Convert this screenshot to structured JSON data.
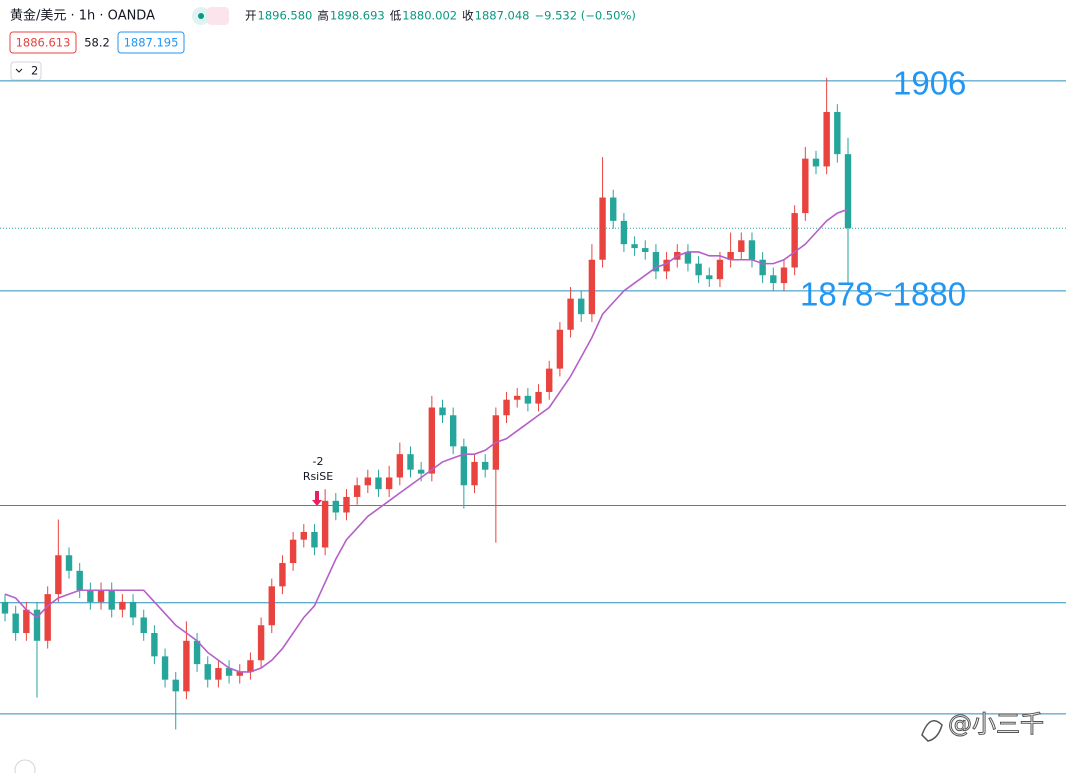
{
  "header": {
    "symbol": "黄金/美元 · 1h · OANDA",
    "ohlc": [
      {
        "label": "开",
        "value": "1896.580"
      },
      {
        "label": "高",
        "value": "1898.693"
      },
      {
        "label": "低",
        "value": "1880.002"
      },
      {
        "label": "收",
        "value": "1887.048"
      }
    ],
    "change": "−9.532 (−0.50%)",
    "bid": "1886.613",
    "spread": "58.2",
    "ask": "1887.195",
    "collapse": "2"
  },
  "watermark": "@小三千",
  "chart_data": {
    "type": "candlestick",
    "up_color": "#e8433f",
    "down_color": "#26a69a",
    "ylim": [
      1817,
      1916.4
    ],
    "open": [
      1839,
      1837.5,
      1835,
      1838,
      1834,
      1840,
      1845,
      1843,
      1840.5,
      1839,
      1840.5,
      1838,
      1839,
      1837,
      1835,
      1832,
      1829,
      1827.5,
      1834,
      1831,
      1829,
      1830.5,
      1829.5,
      1830,
      1831.5,
      1836,
      1841,
      1844,
      1847,
      1848,
      1846,
      1852,
      1850.5,
      1852.5,
      1854,
      1855,
      1853.5,
      1855,
      1858,
      1856,
      1855.5,
      1864,
      1863,
      1859,
      1854,
      1857,
      1856,
      1863,
      1865,
      1865.5,
      1864.5,
      1866,
      1869,
      1874,
      1878,
      1876,
      1883,
      1891,
      1888,
      1885,
      1884.5,
      1884,
      1881.5,
      1883,
      1884,
      1882.5,
      1881,
      1880.5,
      1883,
      1884,
      1885.5,
      1883,
      1881,
      1880,
      1882,
      1889,
      1896,
      1895,
      1902,
      1896.58
    ],
    "high": [
      1840,
      1838.5,
      1839,
      1839,
      1841,
      1849.6,
      1846,
      1844,
      1841.5,
      1841.5,
      1841.5,
      1840,
      1840,
      1838,
      1836,
      1833,
      1830,
      1836.5,
      1835,
      1832,
      1831.5,
      1831.5,
      1831,
      1832.5,
      1837,
      1842,
      1845,
      1848,
      1849,
      1849,
      1853.5,
      1853,
      1853.5,
      1855,
      1856,
      1856,
      1856.5,
      1859.5,
      1859,
      1857,
      1865.5,
      1865,
      1864,
      1860,
      1858,
      1858,
      1864,
      1866,
      1866.5,
      1866.5,
      1867,
      1870,
      1875,
      1879.5,
      1879,
      1885,
      1896.2,
      1892,
      1889,
      1886,
      1885.5,
      1885,
      1884,
      1885,
      1885,
      1883.5,
      1882,
      1884,
      1886.5,
      1886.5,
      1886.5,
      1884,
      1882,
      1883,
      1890,
      1897.5,
      1897,
      1906.4,
      1903,
      1898.693
    ],
    "low": [
      1836.5,
      1834,
      1834,
      1826.7,
      1833,
      1839,
      1842,
      1839.5,
      1838,
      1838,
      1837,
      1837,
      1836,
      1834,
      1831,
      1828,
      1822.6,
      1826.5,
      1830,
      1828,
      1828,
      1828.5,
      1828.5,
      1829,
      1830.5,
      1835,
      1840,
      1843,
      1846,
      1845,
      1845,
      1849.5,
      1849.5,
      1851.5,
      1853,
      1852.5,
      1852.5,
      1854,
      1855,
      1854.5,
      1854.5,
      1862,
      1858,
      1851,
      1853,
      1855,
      1846.6,
      1862,
      1864,
      1863.5,
      1863.5,
      1865,
      1868,
      1873,
      1875,
      1875,
      1882,
      1887,
      1884,
      1883.5,
      1883,
      1880.5,
      1880.5,
      1882,
      1881.5,
      1880,
      1879.5,
      1879.5,
      1882,
      1883,
      1882,
      1880,
      1879,
      1879,
      1881,
      1888,
      1894,
      1894,
      1895.5,
      1880.002
    ],
    "close": [
      1837.5,
      1835,
      1838,
      1834,
      1840,
      1845,
      1843,
      1840.5,
      1839,
      1840.5,
      1838,
      1839,
      1837,
      1835,
      1832,
      1829,
      1827.5,
      1834,
      1831,
      1829,
      1830.5,
      1829.5,
      1830,
      1831.5,
      1836,
      1841,
      1844,
      1847,
      1848,
      1846,
      1852,
      1850.5,
      1852.5,
      1854,
      1855,
      1853.5,
      1855,
      1858,
      1856,
      1855.5,
      1864,
      1863,
      1859,
      1854,
      1857,
      1856,
      1863,
      1865,
      1865.5,
      1864.5,
      1866,
      1869,
      1874,
      1878,
      1876,
      1883,
      1891,
      1888,
      1885,
      1884.5,
      1884,
      1881.5,
      1883,
      1884,
      1882.5,
      1881,
      1880.5,
      1883,
      1884,
      1885.5,
      1883,
      1881,
      1880,
      1882,
      1889,
      1896,
      1895,
      1902,
      1896.58,
      1887.048
    ],
    "ma": {
      "color": "#b55fc9",
      "values": [
        1840,
        1839.5,
        1838,
        1837,
        1838.5,
        1839.5,
        1840,
        1840.5,
        1840.5,
        1840.5,
        1840.5,
        1840.5,
        1840.5,
        1840.5,
        1839,
        1837.5,
        1836,
        1835,
        1834,
        1832.5,
        1831.5,
        1830.5,
        1830,
        1830,
        1830.5,
        1831.5,
        1833,
        1835,
        1837,
        1838.5,
        1841.5,
        1844.5,
        1847,
        1848.5,
        1850,
        1851,
        1852,
        1853,
        1854,
        1855,
        1856,
        1857,
        1857.5,
        1858,
        1858,
        1858.5,
        1859.5,
        1860,
        1861,
        1862,
        1863,
        1864,
        1866,
        1868,
        1870.5,
        1873,
        1876,
        1877.5,
        1879,
        1880,
        1881,
        1882,
        1882.5,
        1883.5,
        1884,
        1884,
        1883.5,
        1883.5,
        1883,
        1883,
        1883,
        1882.5,
        1882.5,
        1883,
        1884,
        1885,
        1886.5,
        1888,
        1889,
        1889.5
      ]
    },
    "hlines": {
      "color": "#2a8fbd",
      "values": [
        1906,
        1879,
        1851.4,
        1838.9,
        1824.6
      ]
    },
    "last_price_line": true,
    "annotations": [
      "1906",
      "1878~1880"
    ],
    "signal": {
      "value": -2,
      "label": "RsiSE",
      "color": "#e91e63"
    }
  }
}
